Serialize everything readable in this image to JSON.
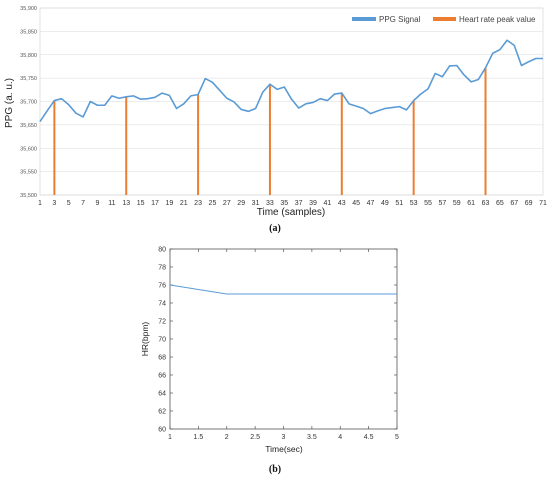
{
  "colors": {
    "ppg": "#5b9bd5",
    "peak": "#ed7d31",
    "hr": "#5b9bd5",
    "grid": "#d9d9d9"
  },
  "chart_data": [
    {
      "type": "line",
      "caption": "(a)",
      "xlabel": "Time (samples)",
      "ylabel": "PPG (a. u.)",
      "xlim": [
        1,
        71
      ],
      "ylim": [
        35500,
        35900
      ],
      "xticks": [
        "1",
        "3",
        "5",
        "7",
        "9",
        "11",
        "13",
        "15",
        "17",
        "19",
        "21",
        "23",
        "25",
        "27",
        "29",
        "31",
        "33",
        "35",
        "37",
        "39",
        "41",
        "43",
        "45",
        "47",
        "49",
        "51",
        "53",
        "55",
        "57",
        "59",
        "61",
        "63",
        "65",
        "67",
        "69",
        "71"
      ],
      "yticks": [
        "35,500",
        "35,550",
        "35,600",
        "35,650",
        "35,700",
        "35,750",
        "35,800",
        "35,850",
        "35,900"
      ],
      "grid": true,
      "legend_position": "top-right",
      "series": [
        {
          "name": "PPG Signal",
          "x": [
            1,
            2,
            3,
            4,
            5,
            6,
            7,
            8,
            9,
            10,
            11,
            12,
            13,
            14,
            15,
            16,
            17,
            18,
            19,
            20,
            21,
            22,
            23,
            24,
            25,
            26,
            27,
            28,
            29,
            30,
            31,
            32,
            33,
            34,
            35,
            36,
            37,
            38,
            39,
            40,
            41,
            42,
            43,
            44,
            45,
            46,
            47,
            48,
            49,
            50,
            51,
            52,
            53,
            54,
            55,
            56,
            57,
            58,
            59,
            60,
            61,
            62,
            63,
            64,
            65,
            66,
            67,
            68,
            69,
            70,
            71
          ],
          "values": [
            35657,
            35680,
            35702,
            35706,
            35693,
            35675,
            35667,
            35700,
            35692,
            35692,
            35712,
            35707,
            35710,
            35712,
            35705,
            35706,
            35709,
            35718,
            35713,
            35685,
            35695,
            35712,
            35715,
            35749,
            35741,
            35724,
            35707,
            35699,
            35683,
            35679,
            35685,
            35720,
            35737,
            35726,
            35731,
            35705,
            35686,
            35695,
            35698,
            35706,
            35702,
            35716,
            35718,
            35695,
            35690,
            35685,
            35674,
            35680,
            35685,
            35687,
            35689,
            35682,
            35702,
            35716,
            35727,
            35760,
            35753,
            35776,
            35777,
            35757,
            35742,
            35747,
            35772,
            35803,
            35811,
            35831,
            35820,
            35777,
            35785,
            35792,
            35792
          ]
        },
        {
          "name": "Heart rate peak value",
          "type": "stem",
          "x": [
            3,
            13,
            23,
            33,
            43,
            53,
            63
          ],
          "values": [
            35702,
            35710,
            35715,
            35737,
            35718,
            35702,
            35772
          ]
        }
      ]
    },
    {
      "type": "line",
      "caption": "(b)",
      "xlabel": "Time(sec)",
      "ylabel": "HR(bpm)",
      "xlim": [
        1,
        5
      ],
      "ylim": [
        60,
        80
      ],
      "xticks": [
        "1",
        "1.5",
        "2",
        "2.5",
        "3",
        "3.5",
        "4",
        "4.5",
        "5"
      ],
      "yticks": [
        "60",
        "62",
        "64",
        "66",
        "68",
        "70",
        "72",
        "74",
        "76",
        "78",
        "80"
      ],
      "grid": false,
      "series": [
        {
          "x": [
            1,
            2,
            3,
            4,
            5
          ],
          "values": [
            76,
            75,
            75,
            75,
            75
          ]
        }
      ]
    }
  ]
}
